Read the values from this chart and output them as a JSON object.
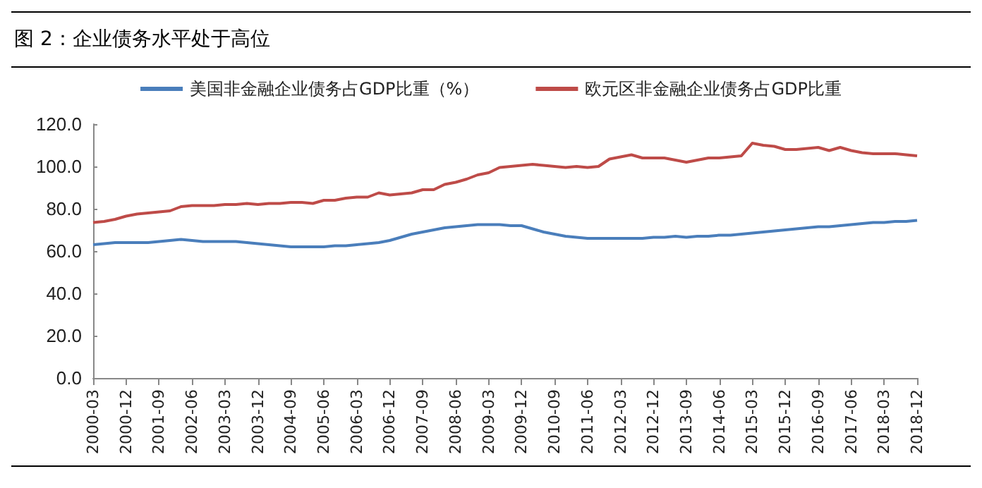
{
  "chart_data": {
    "type": "line",
    "title": "图 2：企业债务水平处于高位",
    "legend": "top",
    "grid": false,
    "marker": "none",
    "line_style": "solid",
    "categories": [
      "2000-03",
      null,
      null,
      "2000-12",
      null,
      null,
      "2001-09",
      null,
      null,
      "2002-06",
      null,
      null,
      "2003-03",
      null,
      null,
      "2003-12",
      null,
      null,
      "2004-09",
      null,
      null,
      "2005-06",
      null,
      null,
      "2006-03",
      null,
      null,
      "2006-12",
      null,
      null,
      "2007-09",
      null,
      null,
      "2008-06",
      null,
      null,
      "2009-03",
      null,
      null,
      "2009-12",
      null,
      null,
      "2010-09",
      null,
      null,
      "2011-06",
      null,
      null,
      "2012-03",
      null,
      null,
      "2012-12",
      null,
      null,
      "2013-09",
      null,
      null,
      "2014-06",
      null,
      null,
      "2015-03",
      null,
      null,
      "2015-12",
      null,
      null,
      "2016-09",
      null,
      null,
      "2017-06",
      null,
      null,
      "2018-03",
      null,
      null,
      "2018-12"
    ],
    "ylim": [
      0,
      120
    ],
    "yticks": [
      {
        "value": 0,
        "label": "0.0"
      },
      {
        "value": 20,
        "label": "20.0"
      },
      {
        "value": 40,
        "label": "40.0"
      },
      {
        "value": 60,
        "label": "60.0"
      },
      {
        "value": 80,
        "label": "80.0"
      },
      {
        "value": 100,
        "label": "100.0"
      },
      {
        "value": 120,
        "label": "120.0"
      }
    ],
    "series": [
      {
        "name": "美国非金融企业债务占GDP比重（%）",
        "color": "#4a7ebb",
        "values": [
          63,
          63.5,
          64,
          64,
          64,
          64,
          64.5,
          65,
          65.5,
          65,
          64.5,
          64.5,
          64.5,
          64.5,
          64,
          63.5,
          63,
          62.5,
          62,
          62,
          62,
          62,
          62.5,
          62.5,
          63,
          63.5,
          64,
          65,
          66.5,
          68,
          69,
          70,
          71,
          71.5,
          72,
          72.5,
          72.5,
          72.5,
          72,
          72,
          70.5,
          69,
          68,
          67,
          66.5,
          66,
          66,
          66,
          66,
          66,
          66,
          66.5,
          66.5,
          67,
          66.5,
          67,
          67,
          67.5,
          67.5,
          68,
          68.5,
          69,
          69.5,
          70,
          70.5,
          71,
          71.5,
          71.5,
          72,
          72.5,
          73,
          73.5,
          73.5,
          74,
          74,
          74.5
        ]
      },
      {
        "name": "欧元区非金融企业债务占GDP比重",
        "color": "#be4b48",
        "values": [
          73.5,
          74,
          75,
          76.5,
          77.5,
          78,
          78.5,
          79,
          81,
          81.5,
          81.5,
          81.5,
          82,
          82,
          82.5,
          82,
          82.5,
          82.5,
          83,
          83,
          82.5,
          84,
          84,
          85,
          85.5,
          85.5,
          87.5,
          86.5,
          87,
          87.5,
          89,
          89,
          91.5,
          92.5,
          94,
          96,
          97,
          99.5,
          100,
          100.5,
          101,
          100.5,
          100,
          99.5,
          100,
          99.5,
          100,
          103.5,
          104.5,
          105.5,
          104,
          104,
          104,
          103,
          102,
          103,
          104,
          104,
          104.5,
          105,
          111,
          110,
          109.5,
          108,
          108,
          108.5,
          109,
          107.5,
          109,
          107.5,
          106.5,
          106,
          106,
          106,
          105.5,
          105
        ]
      }
    ]
  }
}
